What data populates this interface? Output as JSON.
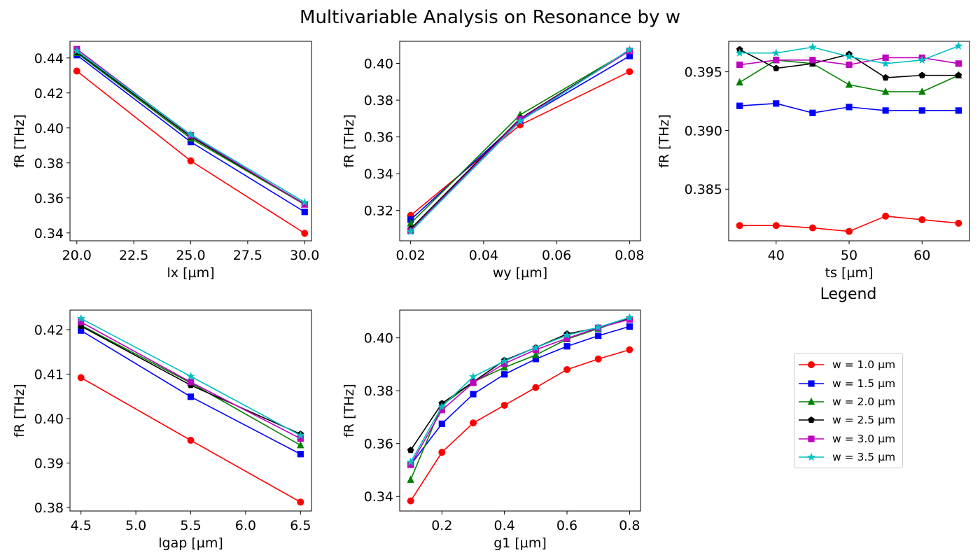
{
  "figure": {
    "title": "Multivariable Analysis on Resonance by w",
    "legend_title": "Legend"
  },
  "legend": {
    "entries": [
      {
        "label": "w = 1.0 µm",
        "color": "#ff0000",
        "marker": "circle"
      },
      {
        "label": "w = 1.5 µm",
        "color": "#0000ff",
        "marker": "square"
      },
      {
        "label": "w = 2.0 µm",
        "color": "#008000",
        "marker": "triangle"
      },
      {
        "label": "w = 2.5 µm",
        "color": "#000000",
        "marker": "pentagon"
      },
      {
        "label": "w = 3.0 µm",
        "color": "#bf00bf",
        "marker": "square"
      },
      {
        "label": "w = 3.5 µm",
        "color": "#00bfbf",
        "marker": "star"
      }
    ]
  },
  "chart_data": [
    {
      "type": "line",
      "xlabel": "lx [µm]",
      "ylabel": "fR [THz]",
      "xlim": [
        19.7,
        30.3
      ],
      "ylim": [
        0.3355,
        0.4495
      ],
      "xticks": [
        20.0,
        22.5,
        25.0,
        27.5,
        30.0
      ],
      "xtick_labels": [
        "20.0",
        "22.5",
        "25.0",
        "27.5",
        "30.0"
      ],
      "yticks": [
        0.34,
        0.36,
        0.38,
        0.4,
        0.42,
        0.44
      ],
      "ytick_labels": [
        "0.34",
        "0.36",
        "0.38",
        "0.40",
        "0.42",
        "0.44"
      ],
      "x": [
        20,
        25,
        30
      ],
      "series": [
        {
          "name": "w = 1.0 µm",
          "values": [
            0.4325,
            0.3812,
            0.3398
          ]
        },
        {
          "name": "w = 1.5 µm",
          "values": [
            0.4416,
            0.392,
            0.352
          ]
        },
        {
          "name": "w = 2.0 µm",
          "values": [
            0.4428,
            0.394,
            0.3562
          ]
        },
        {
          "name": "w = 2.5 µm",
          "values": [
            0.4435,
            0.395,
            0.3565
          ]
        },
        {
          "name": "w = 3.0 µm",
          "values": [
            0.445,
            0.3958,
            0.3563
          ]
        },
        {
          "name": "w = 3.5 µm",
          "values": [
            0.444,
            0.3962,
            0.3575
          ]
        }
      ]
    },
    {
      "type": "line",
      "xlabel": "wy [µm]",
      "ylabel": "fR [THz]",
      "xlim": [
        0.017,
        0.083
      ],
      "ylim": [
        0.3035,
        0.412
      ],
      "xticks": [
        0.02,
        0.04,
        0.06,
        0.08
      ],
      "xtick_labels": [
        "0.02",
        "0.04",
        "0.06",
        "0.08"
      ],
      "yticks": [
        0.32,
        0.34,
        0.36,
        0.38,
        0.4
      ],
      "ytick_labels": [
        "0.32",
        "0.34",
        "0.36",
        "0.38",
        "0.40"
      ],
      "x": [
        0.02,
        0.05,
        0.08
      ],
      "series": [
        {
          "name": "w = 1.0 µm",
          "values": [
            0.3173,
            0.3665,
            0.3955
          ]
        },
        {
          "name": "w = 1.5 µm",
          "values": [
            0.315,
            0.369,
            0.404
          ]
        },
        {
          "name": "w = 2.0 µm",
          "values": [
            0.313,
            0.372,
            0.407
          ]
        },
        {
          "name": "w = 2.5 µm",
          "values": [
            0.31,
            0.37,
            0.407
          ]
        },
        {
          "name": "w = 3.0 µm",
          "values": [
            0.309,
            0.3695,
            0.4068
          ]
        },
        {
          "name": "w = 3.5 µm",
          "values": [
            0.3085,
            0.3685,
            0.4075
          ]
        }
      ]
    },
    {
      "type": "line",
      "xlabel": "ts [µm]",
      "ylabel": "fR [THz]",
      "xlim": [
        33.5,
        66.5
      ],
      "ylim": [
        0.3806,
        0.3976
      ],
      "xticks": [
        40,
        50,
        60
      ],
      "xtick_labels": [
        "40",
        "50",
        "60"
      ],
      "yticks": [
        0.385,
        0.39,
        0.395
      ],
      "ytick_labels": [
        "0.385",
        "0.390",
        "0.395"
      ],
      "x": [
        35,
        40,
        45,
        50,
        55,
        60,
        65
      ],
      "series": [
        {
          "name": "w = 1.0 µm",
          "values": [
            0.3819,
            0.3819,
            0.3817,
            0.3814,
            0.3827,
            0.3824,
            0.3821
          ]
        },
        {
          "name": "w = 1.5 µm",
          "values": [
            0.3921,
            0.3923,
            0.3915,
            0.392,
            0.3917,
            0.3917,
            0.3917
          ]
        },
        {
          "name": "w = 2.0 µm",
          "values": [
            0.3941,
            0.396,
            0.3957,
            0.3939,
            0.3933,
            0.3933,
            0.3947
          ]
        },
        {
          "name": "w = 2.5 µm",
          "values": [
            0.3969,
            0.3953,
            0.3957,
            0.3965,
            0.3945,
            0.3947,
            0.3947
          ]
        },
        {
          "name": "w = 3.0 µm",
          "values": [
            0.3956,
            0.396,
            0.396,
            0.3956,
            0.3962,
            0.3962,
            0.3957
          ]
        },
        {
          "name": "w = 3.5 µm",
          "values": [
            0.3966,
            0.3966,
            0.3971,
            0.3963,
            0.3957,
            0.396,
            0.3972
          ]
        }
      ]
    },
    {
      "type": "line",
      "xlabel": "lgap [µm]",
      "ylabel": "fR [THz]",
      "xlim": [
        4.4,
        6.6
      ],
      "ylim": [
        0.3792,
        0.4244
      ],
      "xticks": [
        4.5,
        5.0,
        5.5,
        6.0,
        6.5
      ],
      "xtick_labels": [
        "4.5",
        "5.0",
        "5.5",
        "6.0",
        "6.5"
      ],
      "yticks": [
        0.38,
        0.39,
        0.4,
        0.41,
        0.42
      ],
      "ytick_labels": [
        "0.38",
        "0.39",
        "0.40",
        "0.41",
        "0.42"
      ],
      "x": [
        4.5,
        5.5,
        6.5
      ],
      "series": [
        {
          "name": "w = 1.0 µm",
          "values": [
            0.4092,
            0.3951,
            0.3812
          ]
        },
        {
          "name": "w = 1.5 µm",
          "values": [
            0.4198,
            0.4049,
            0.392
          ]
        },
        {
          "name": "w = 2.0 µm",
          "values": [
            0.421,
            0.408,
            0.394
          ]
        },
        {
          "name": "w = 2.5 µm",
          "values": [
            0.4208,
            0.4075,
            0.3965
          ]
        },
        {
          "name": "w = 3.0 µm",
          "values": [
            0.4217,
            0.4082,
            0.3955
          ]
        },
        {
          "name": "w = 3.5 µm",
          "values": [
            0.4225,
            0.4095,
            0.3962
          ]
        }
      ]
    },
    {
      "type": "line",
      "xlabel": "g1 [µm]",
      "ylabel": "fR [THz]",
      "xlim": [
        0.065,
        0.835
      ],
      "ylim": [
        0.3345,
        0.4105
      ],
      "xticks": [
        0.2,
        0.4,
        0.6,
        0.8
      ],
      "xtick_labels": [
        "0.2",
        "0.4",
        "0.6",
        "0.8"
      ],
      "yticks": [
        0.34,
        0.36,
        0.38,
        0.4
      ],
      "ytick_labels": [
        "0.34",
        "0.36",
        "0.38",
        "0.40"
      ],
      "x": [
        0.1,
        0.2,
        0.3,
        0.4,
        0.5,
        0.6,
        0.7,
        0.8
      ],
      "series": [
        {
          "name": "w = 1.0 µm",
          "values": [
            0.3383,
            0.3567,
            0.3678,
            0.3745,
            0.3812,
            0.388,
            0.392,
            0.3955
          ]
        },
        {
          "name": "w = 1.5 µm",
          "values": [
            0.352,
            0.3675,
            0.3787,
            0.3862,
            0.392,
            0.3968,
            0.4008,
            0.4043
          ]
        },
        {
          "name": "w = 2.0 µm",
          "values": [
            0.3463,
            0.3745,
            0.3833,
            0.3888,
            0.3935,
            0.3995,
            0.4035,
            0.4075
          ]
        },
        {
          "name": "w = 2.5 µm",
          "values": [
            0.3575,
            0.3752,
            0.3833,
            0.3915,
            0.3963,
            0.4015,
            0.4038,
            0.4072
          ]
        },
        {
          "name": "w = 3.0 µm",
          "values": [
            0.352,
            0.3727,
            0.383,
            0.3903,
            0.3955,
            0.3998,
            0.4038,
            0.407
          ]
        },
        {
          "name": "w = 3.5 µm",
          "values": [
            0.353,
            0.374,
            0.3853,
            0.3912,
            0.3963,
            0.401,
            0.404,
            0.4077
          ]
        }
      ]
    }
  ]
}
